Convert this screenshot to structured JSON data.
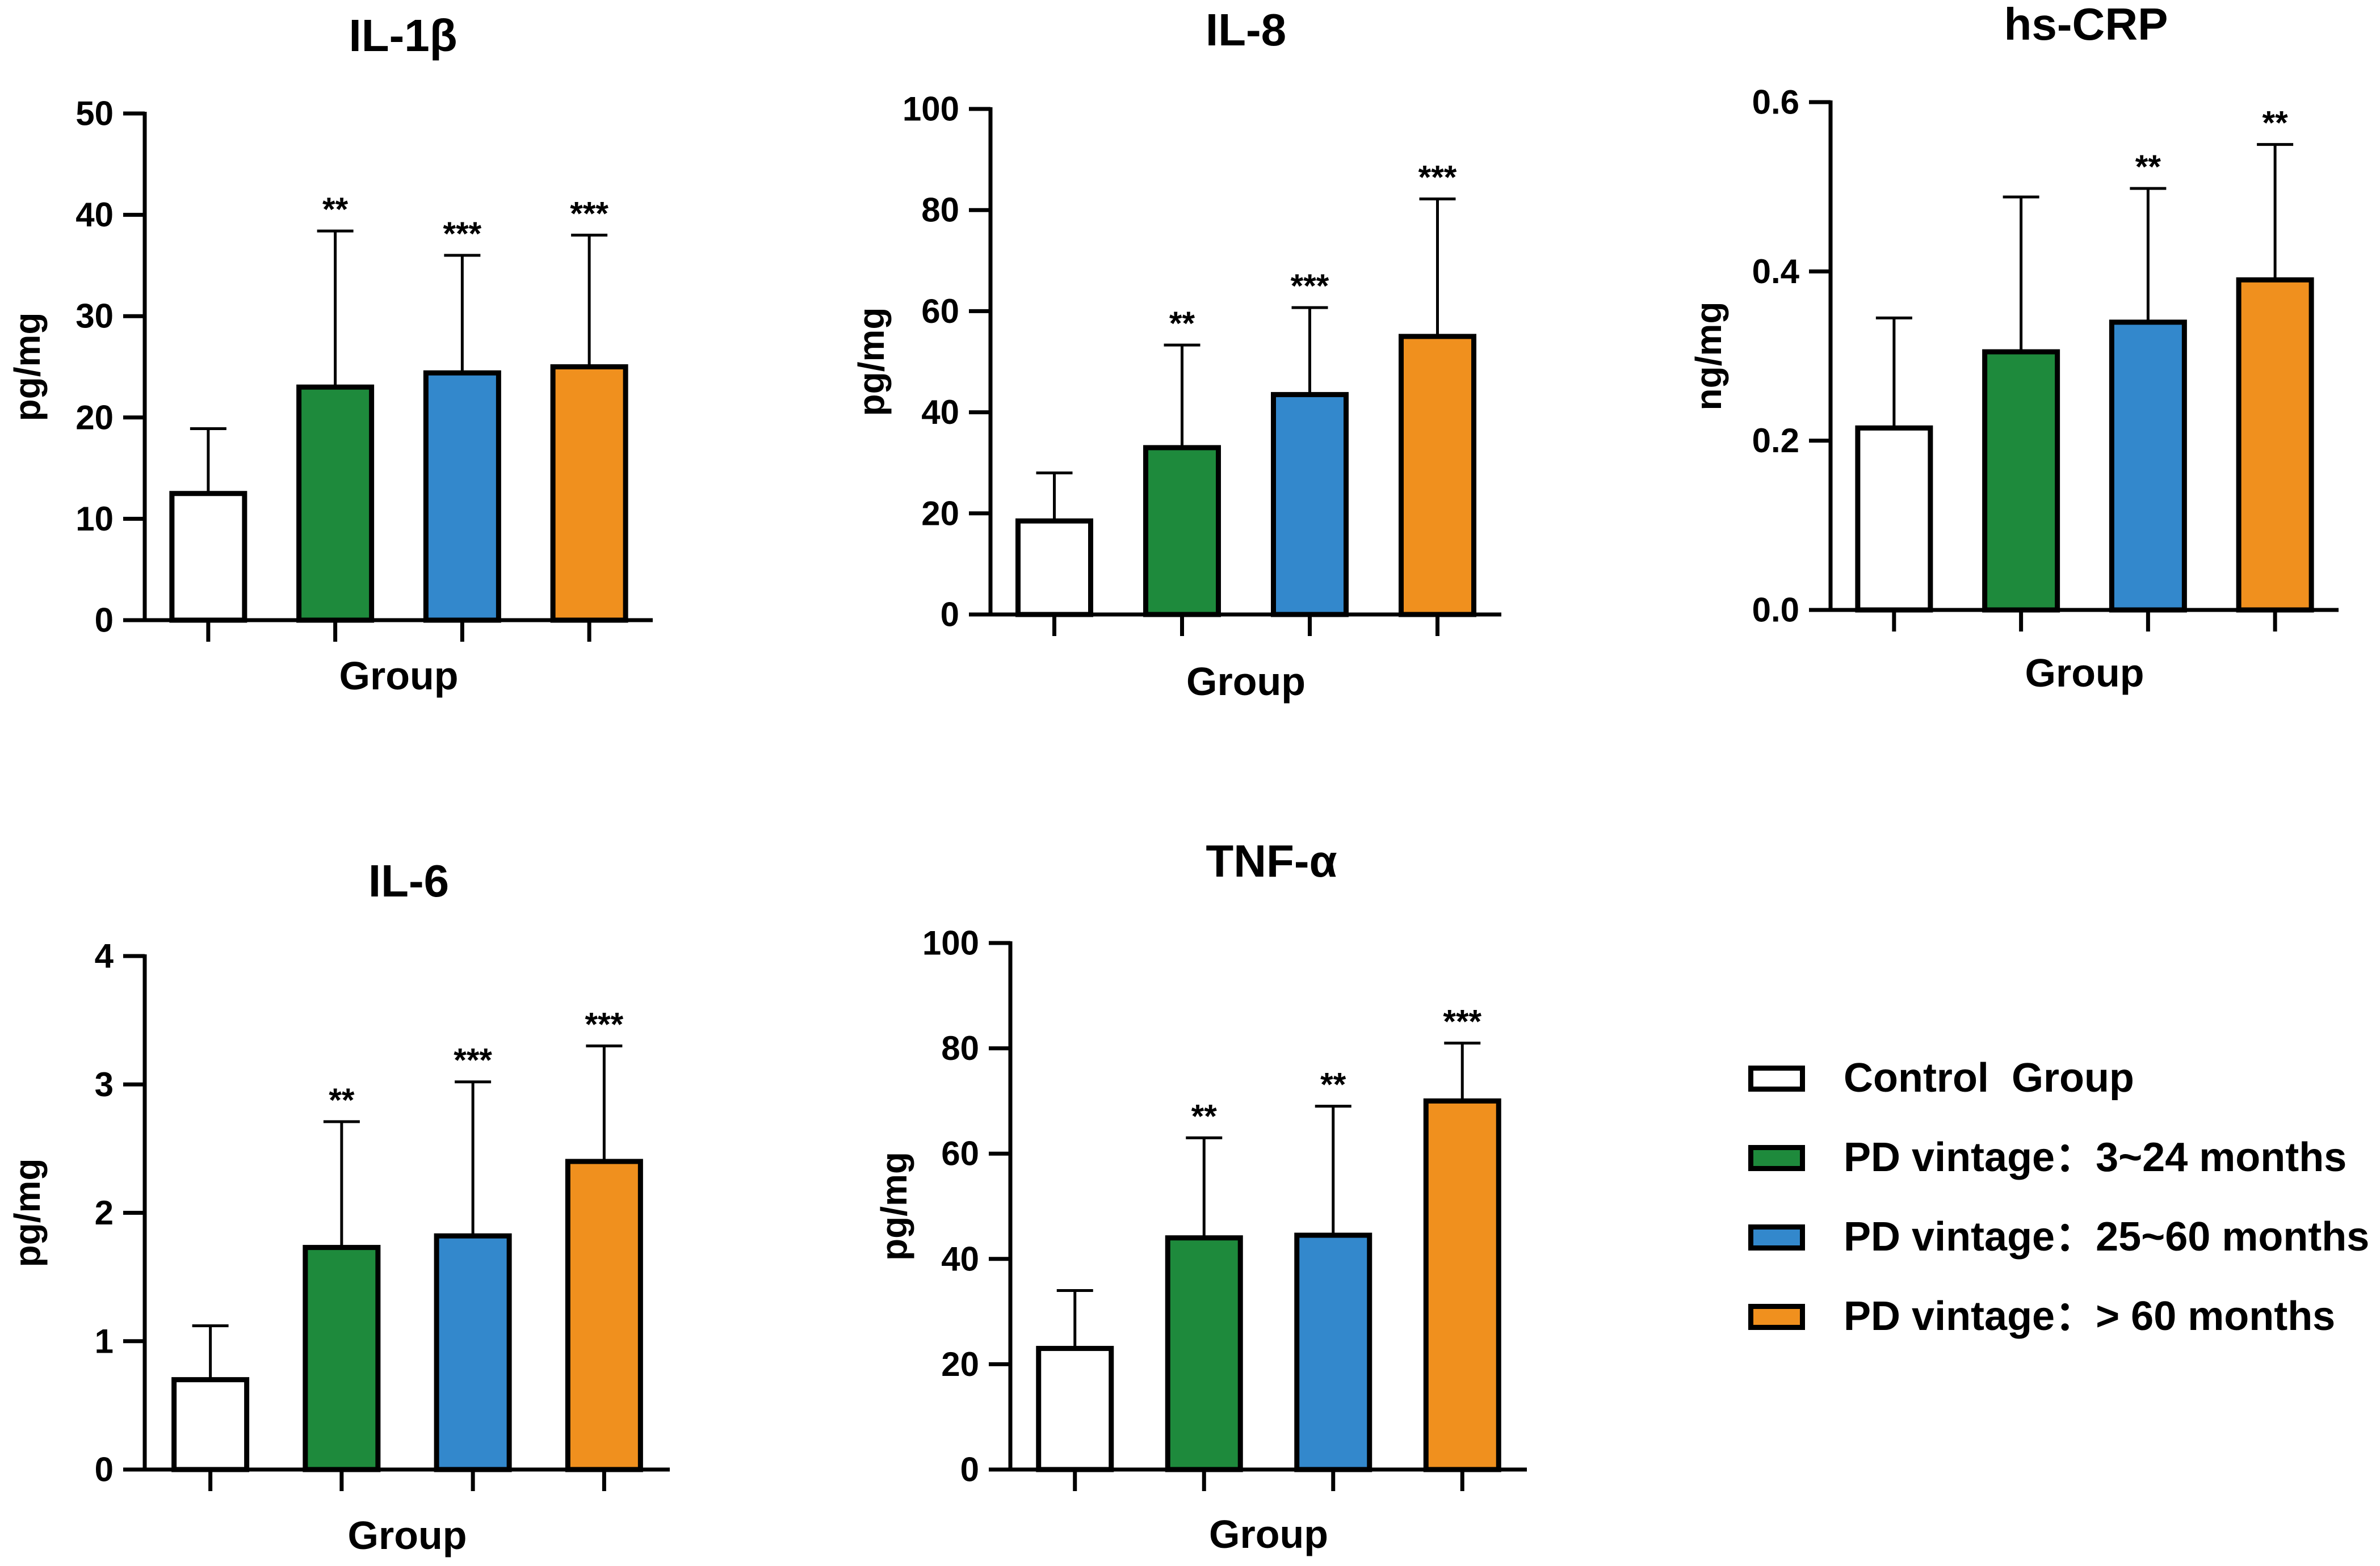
{
  "groups": [
    {
      "key": "control",
      "label": "Control  Group",
      "color": "#ffffff"
    },
    {
      "key": "pd1",
      "label": "PD vintage：3~24 months",
      "color": "#1e8a3c"
    },
    {
      "key": "pd2",
      "label": "PD vintage：25~60 months",
      "color": "#3388cc"
    },
    {
      "key": "pd3",
      "label": "PD vintage：> 60 months",
      "color": "#f0901e"
    }
  ],
  "chart_data": [
    {
      "type": "bar",
      "title": "IL-1β",
      "xlabel": "Group",
      "ylabel": "pg/mg",
      "ylim": [
        0,
        50
      ],
      "ticks": [
        "0",
        "10",
        "20",
        "30",
        "40",
        "50"
      ],
      "values": [
        12.5,
        23,
        24.4,
        25
      ],
      "errors": [
        6.4,
        15.4,
        11.6,
        13
      ],
      "significance": [
        "",
        "**",
        "***",
        "***"
      ]
    },
    {
      "type": "bar",
      "title": "IL-8",
      "xlabel": "Group",
      "ylabel": "pg/mg",
      "ylim": [
        0,
        100
      ],
      "ticks": [
        "0",
        "20",
        "40",
        "60",
        "80",
        "100"
      ],
      "values": [
        18.5,
        33,
        43.5,
        55
      ],
      "errors": [
        9.5,
        20.3,
        17.2,
        27.2
      ],
      "significance": [
        "",
        "**",
        "***",
        "***"
      ]
    },
    {
      "type": "bar",
      "title": "hs-CRP",
      "xlabel": "Group",
      "ylabel": "ng/mg",
      "ylim": [
        0,
        0.6
      ],
      "ticks": [
        "0.0",
        "0.2",
        "0.4",
        "0.6"
      ],
      "values": [
        0.215,
        0.305,
        0.34,
        0.39
      ],
      "errors": [
        0.13,
        0.183,
        0.158,
        0.16
      ],
      "significance": [
        "",
        "",
        "**",
        "**"
      ]
    },
    {
      "type": "bar",
      "title": "IL-6",
      "xlabel": "Group",
      "ylabel": "pg/mg",
      "ylim": [
        0,
        4
      ],
      "ticks": [
        "0",
        "1",
        "2",
        "3",
        "4"
      ],
      "values": [
        0.7,
        1.73,
        1.82,
        2.4
      ],
      "errors": [
        0.42,
        0.98,
        1.2,
        0.9
      ],
      "significance": [
        "",
        "**",
        "***",
        "***"
      ]
    },
    {
      "type": "bar",
      "title": "TNF-α",
      "xlabel": "Group",
      "ylabel": "pg/mg",
      "ylim": [
        0,
        100
      ],
      "ticks": [
        "0",
        "20",
        "40",
        "60",
        "80",
        "100"
      ],
      "values": [
        23,
        44,
        44.5,
        70
      ],
      "errors": [
        11,
        19,
        24.5,
        11
      ],
      "significance": [
        "",
        "**",
        "**",
        "***"
      ]
    }
  ]
}
